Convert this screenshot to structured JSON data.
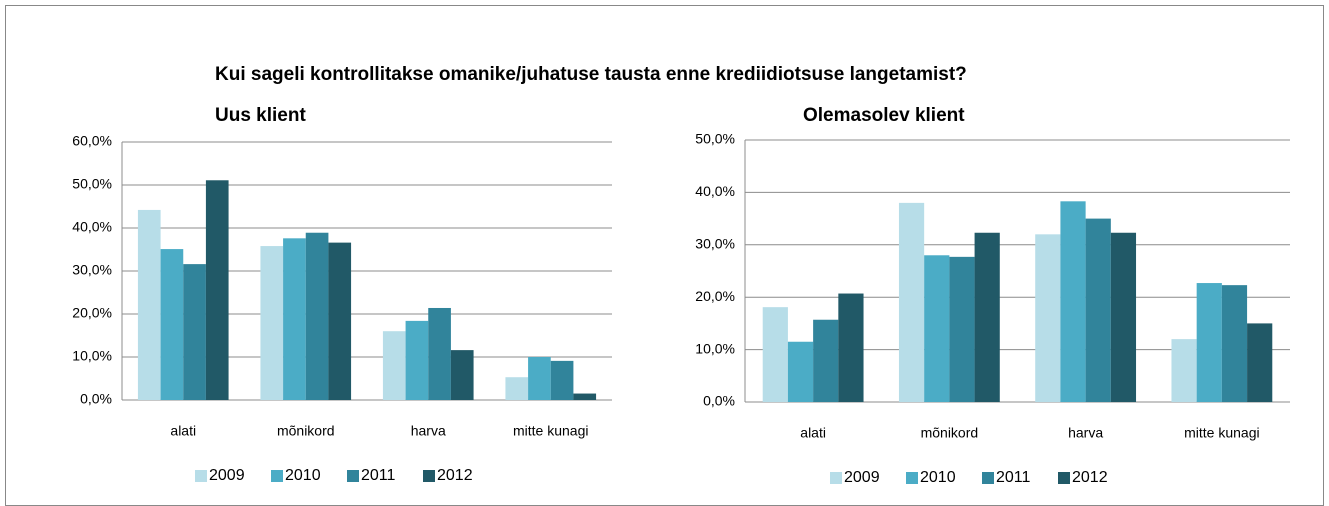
{
  "title": "Kui sageli kontrollitakse omanike/juhatuse tausta enne krediidiotsuse langetamist?",
  "chart_data": [
    {
      "type": "bar",
      "title": "Uus klient",
      "categories": [
        "alati",
        "mõnikord",
        "harva",
        "mitte kunagi"
      ],
      "series": [
        {
          "name": "2009",
          "color": "#b7dde8",
          "values": [
            44.2,
            35.8,
            16,
            5.3
          ]
        },
        {
          "name": "2010",
          "color": "#4bacc6",
          "values": [
            35.1,
            37.6,
            18.4,
            10
          ]
        },
        {
          "name": "2011",
          "color": "#31849b",
          "values": [
            31.6,
            38.9,
            21.4,
            9.1
          ]
        },
        {
          "name": "2012",
          "color": "#215967",
          "values": [
            51.1,
            36.6,
            11.6,
            1.5
          ]
        }
      ],
      "ylim": [
        0,
        60
      ],
      "yticks": [
        {
          "value": 0,
          "label": "0,0%"
        },
        {
          "value": 10,
          "label": "10,0%"
        },
        {
          "value": 20,
          "label": "20,0%"
        },
        {
          "value": 30,
          "label": "30,0%"
        },
        {
          "value": 40,
          "label": "40,0%"
        },
        {
          "value": 50,
          "label": "50,0%"
        },
        {
          "value": 60,
          "label": "60,0%"
        }
      ],
      "grid": true,
      "legend": "bottom"
    },
    {
      "type": "bar",
      "title": "Olemasolev klient",
      "categories": [
        "alati",
        "mõnikord",
        "harva",
        "mitte kunagi"
      ],
      "series": [
        {
          "name": "2009",
          "color": "#b7dde8",
          "values": [
            18.1,
            38,
            32,
            12
          ]
        },
        {
          "name": "2010",
          "color": "#4bacc6",
          "values": [
            11.5,
            28,
            38.3,
            22.7
          ]
        },
        {
          "name": "2011",
          "color": "#31849b",
          "values": [
            15.7,
            27.7,
            35,
            22.3
          ]
        },
        {
          "name": "2012",
          "color": "#215967",
          "values": [
            20.7,
            32.3,
            32.3,
            15
          ]
        }
      ],
      "ylim": [
        0,
        50
      ],
      "yticks": [
        {
          "value": 0,
          "label": "0,0%"
        },
        {
          "value": 10,
          "label": "10,0%"
        },
        {
          "value": 20,
          "label": "20,0%"
        },
        {
          "value": 30,
          "label": "30,0%"
        },
        {
          "value": 40,
          "label": "40,0%"
        },
        {
          "value": 50,
          "label": "50,0%"
        }
      ],
      "grid": true,
      "legend": "bottom"
    }
  ]
}
